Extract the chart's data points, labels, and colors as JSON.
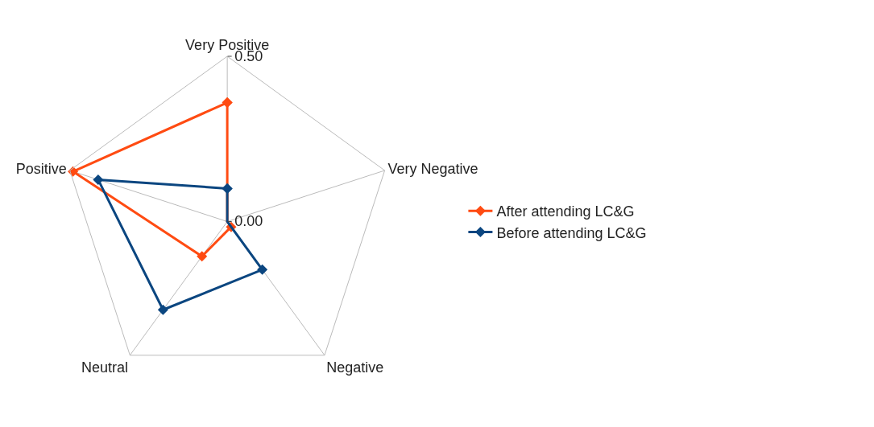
{
  "chart_data": {
    "type": "radar",
    "categories": [
      "Very Positive",
      "Very Negative",
      "Negative",
      "Neutral",
      "Positive"
    ],
    "series": [
      {
        "name": "After attending LC&G",
        "color": "#ff4b12",
        "values": [
          0.36,
          0.0,
          0.02,
          0.13,
          0.49
        ]
      },
      {
        "name": "Before attending LC&G",
        "color": "#0b4680",
        "values": [
          0.1,
          0.0,
          0.18,
          0.33,
          0.41
        ]
      }
    ],
    "ylim": [
      0,
      0.5
    ],
    "yticks": [
      {
        "value": 0,
        "label": "0.00"
      },
      {
        "value": 0.5,
        "label": "0.50"
      }
    ],
    "marker": "diamond",
    "legend": "right",
    "grid": true
  }
}
